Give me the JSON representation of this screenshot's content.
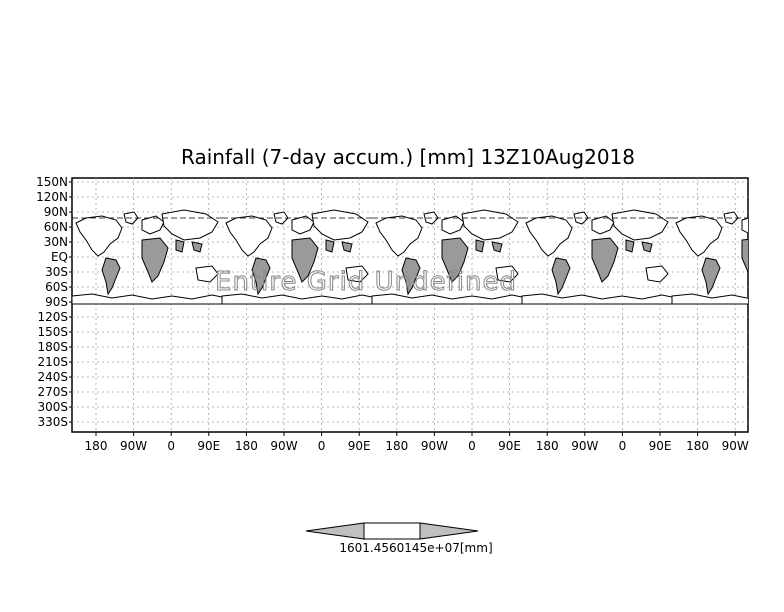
{
  "map": {
    "title": "Rainfall (7-day accum.) [mm] 13Z10Aug2018",
    "overlay_text": "Entire Grid Undefined",
    "lat_labels": [
      "150N",
      "120N",
      "90N",
      "60N",
      "30N",
      "EQ",
      "30S",
      "60S",
      "90S",
      "120S",
      "150S",
      "180S",
      "210S",
      "240S",
      "270S",
      "300S",
      "330S"
    ],
    "lon_labels": [
      "180",
      "90W",
      "0",
      "90E",
      "180",
      "90W",
      "0",
      "90E",
      "180",
      "90W",
      "0",
      "90E",
      "180",
      "90W",
      "0",
      "90E",
      "180",
      "90W"
    ],
    "land_color": "#9a9a9a",
    "grid_color": "#a0a0a0"
  },
  "colorbar": {
    "label": "1601.4560145e+07[mm]",
    "fill_color": "#c0c0c0"
  }
}
